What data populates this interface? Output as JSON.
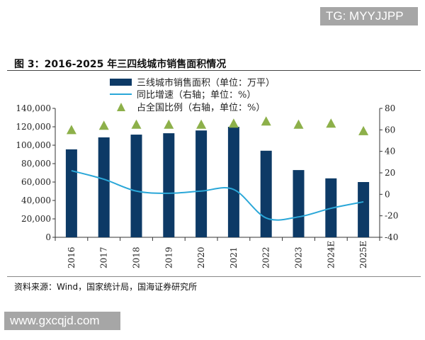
{
  "watermark_top": "TG: MYYJJPP",
  "watermark_bottom": "www.gxcqjd.com",
  "source": "资料来源：Wind，国家统计局，国海证券研究所",
  "chart_data": {
    "type": "bar",
    "title": "图 3：2016-2025 年三四线城市销售面积情况",
    "categories": [
      "2016",
      "2017",
      "2018",
      "2019",
      "2020",
      "2021",
      "2022",
      "2023",
      "2024E",
      "2025E"
    ],
    "series": [
      {
        "name": "三线城市销售面积（单位：万平）",
        "type": "bar",
        "axis": "left",
        "color": "#0d3a66",
        "values": [
          95500,
          108500,
          111500,
          113000,
          116000,
          120000,
          94000,
          73000,
          64000,
          60000
        ]
      },
      {
        "name": "同比增速（右轴；单位：%）",
        "type": "line",
        "axis": "right",
        "color": "#2aa7d8",
        "values": [
          22,
          14,
          3,
          1,
          3,
          4.5,
          -22,
          -21,
          -13,
          -7
        ]
      },
      {
        "name": "占全国比例（右轴，单位：%）",
        "type": "scatter",
        "marker": "triangle",
        "axis": "right",
        "color": "#8db04a",
        "values": [
          60,
          64,
          65,
          65,
          65,
          66,
          68,
          65,
          66,
          59
        ]
      }
    ],
    "ylim": [
      0,
      140000
    ],
    "yticks": [
      "0",
      "20,000",
      "40,000",
      "60,000",
      "80,000",
      "100,000",
      "120,000",
      "140,000"
    ],
    "y2lim": [
      -40,
      80
    ],
    "y2ticks": [
      "-40",
      "-20",
      "0",
      "20",
      "40",
      "60",
      "80"
    ],
    "legend": "top-center"
  }
}
